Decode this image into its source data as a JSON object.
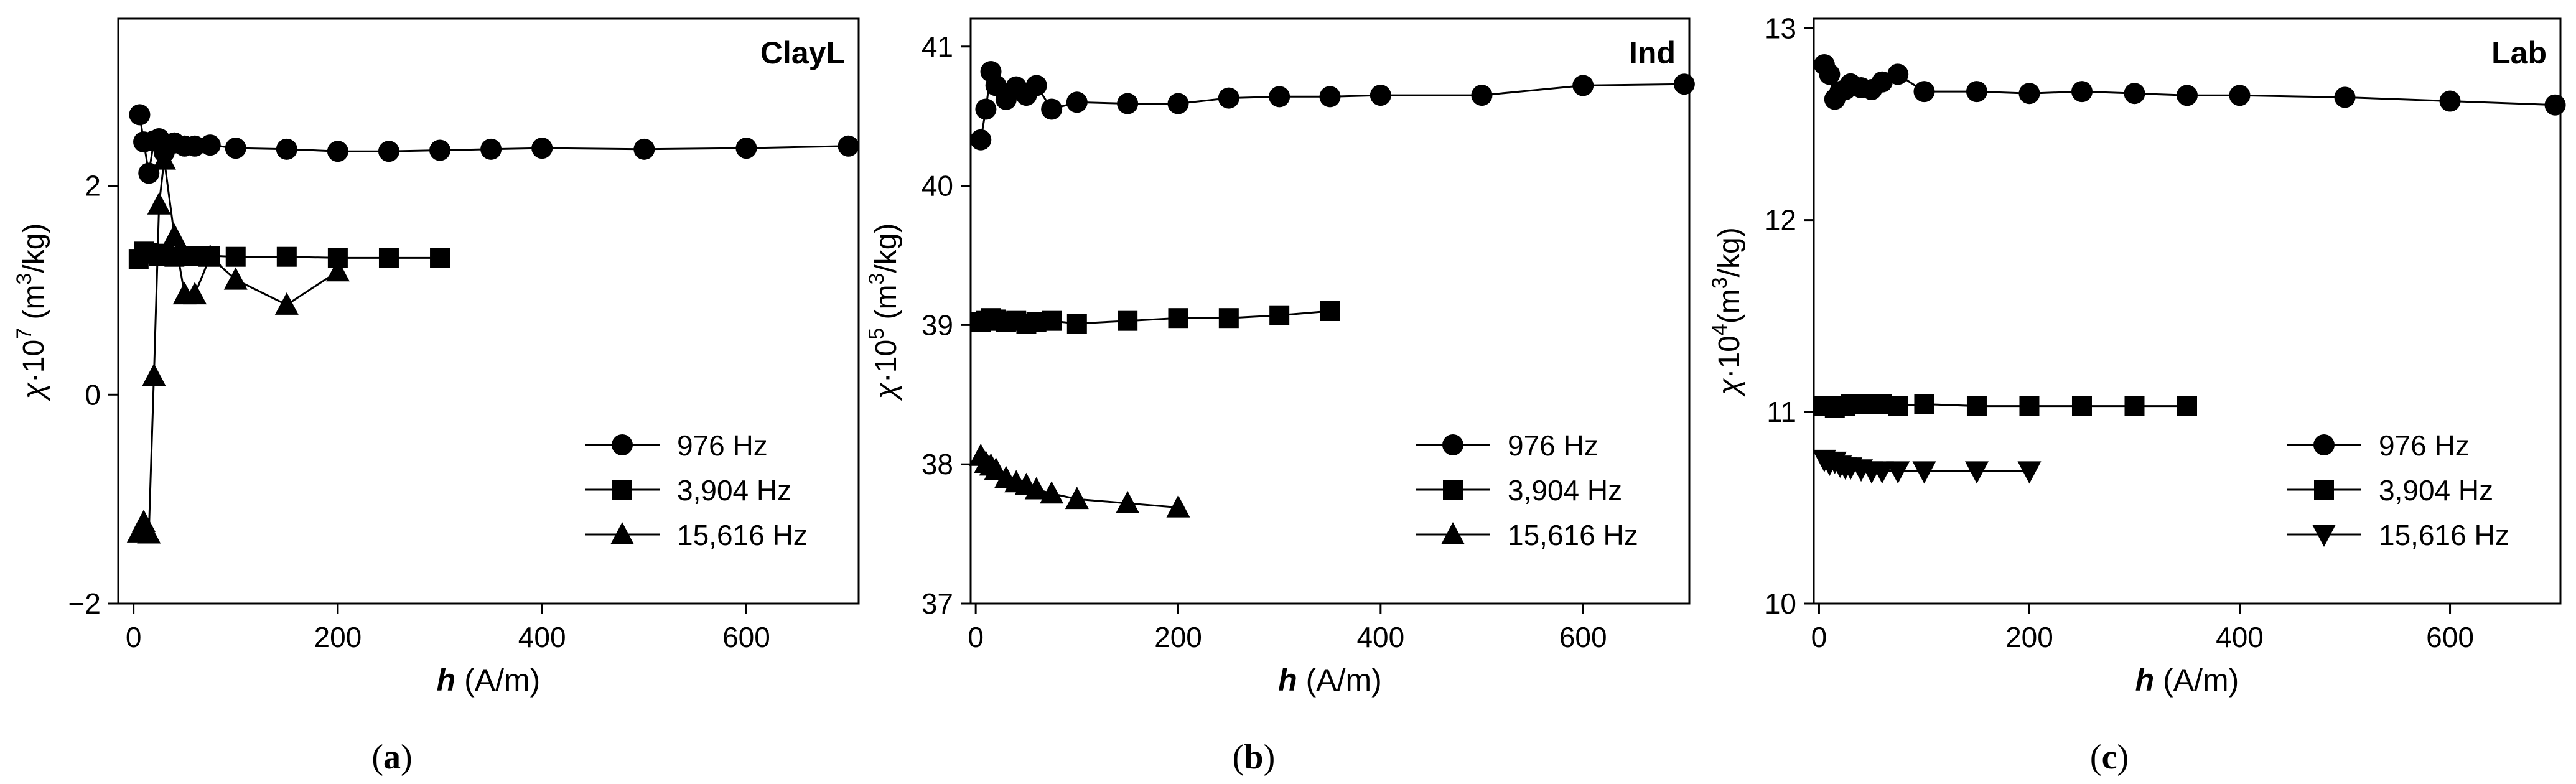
{
  "chart_data": [
    {
      "type": "line",
      "panel": "a",
      "caption_letter": "a",
      "title": "ClayL",
      "xlabel_var": "h",
      "xlabel_unit": "(A/m)",
      "ylabel_var": "χ",
      "ylabel_mult": "·10",
      "ylabel_exp": "7",
      "ylabel_unit_pre": " (m",
      "ylabel_unit_exp": "3",
      "ylabel_unit_post": "/kg)",
      "xlim": [
        -15,
        710
      ],
      "ylim": [
        -2,
        3.6
      ],
      "xticks": [
        0,
        200,
        400,
        600
      ],
      "xtick_labels": [
        "0",
        "200",
        "400",
        "600"
      ],
      "yticks": [
        -2,
        0,
        2
      ],
      "ytick_labels": [
        "−2",
        "0",
        "2"
      ],
      "legend": "bottom-right",
      "series": [
        {
          "name": "976 Hz",
          "marker": "circle",
          "x": [
            6,
            10,
            15,
            20,
            25,
            30,
            40,
            50,
            60,
            75,
            100,
            150,
            200,
            250,
            300,
            350,
            400,
            500,
            600,
            700
          ],
          "y": [
            2.68,
            2.42,
            2.12,
            2.43,
            2.45,
            2.32,
            2.41,
            2.38,
            2.38,
            2.39,
            2.36,
            2.35,
            2.33,
            2.33,
            2.34,
            2.35,
            2.36,
            2.35,
            2.36,
            2.38
          ]
        },
        {
          "name": "3,904 Hz",
          "marker": "square",
          "x": [
            5,
            10,
            15,
            20,
            25,
            30,
            40,
            50,
            60,
            75,
            100,
            150,
            200,
            250,
            300
          ],
          "y": [
            1.3,
            1.37,
            1.36,
            1.35,
            1.33,
            1.33,
            1.32,
            1.33,
            1.33,
            1.33,
            1.32,
            1.32,
            1.31,
            1.31,
            1.31
          ]
        },
        {
          "name": "15,616 Hz",
          "marker": "triangle-up",
          "x": [
            5,
            10,
            15,
            20,
            25,
            30,
            40,
            50,
            60,
            75,
            100,
            150,
            200
          ],
          "y": [
            -1.32,
            -1.22,
            -1.33,
            0.18,
            1.82,
            2.25,
            1.52,
            0.96,
            0.96,
            1.32,
            1.1,
            0.86,
            1.18
          ]
        }
      ]
    },
    {
      "type": "line",
      "panel": "b",
      "caption_letter": "b",
      "title": "Ind",
      "xlabel_var": "h",
      "xlabel_unit": "(A/m)",
      "ylabel_var": "χ",
      "ylabel_mult": "·10",
      "ylabel_exp": "5",
      "ylabel_unit_pre": " (m",
      "ylabel_unit_exp": "3",
      "ylabel_unit_post": "/kg)",
      "xlim": [
        -5,
        705
      ],
      "ylim": [
        37,
        41.2
      ],
      "xticks": [
        0,
        200,
        400,
        600
      ],
      "xtick_labels": [
        "0",
        "200",
        "400",
        "600"
      ],
      "yticks": [
        37,
        38,
        39,
        40,
        41
      ],
      "ytick_labels": [
        "37",
        "38",
        "39",
        "40",
        "41"
      ],
      "legend": "bottom-right",
      "series": [
        {
          "name": "976 Hz",
          "marker": "circle",
          "x": [
            5,
            10,
            15,
            20,
            30,
            40,
            50,
            60,
            75,
            100,
            150,
            200,
            250,
            300,
            350,
            400,
            500,
            600,
            700
          ],
          "y": [
            40.33,
            40.55,
            40.82,
            40.72,
            40.62,
            40.71,
            40.65,
            40.72,
            40.55,
            40.6,
            40.59,
            40.59,
            40.63,
            40.64,
            40.64,
            40.65,
            40.65,
            40.72,
            40.73
          ]
        },
        {
          "name": "3,904 Hz",
          "marker": "square",
          "x": [
            5,
            10,
            15,
            20,
            30,
            40,
            50,
            60,
            75,
            100,
            150,
            200,
            250,
            300,
            350
          ],
          "y": [
            39.02,
            39.03,
            39.05,
            39.04,
            39.02,
            39.03,
            39.01,
            39.02,
            39.03,
            39.01,
            39.03,
            39.05,
            39.05,
            39.07,
            39.1
          ]
        },
        {
          "name": "15,616 Hz",
          "marker": "triangle-up",
          "x": [
            5,
            10,
            15,
            20,
            30,
            40,
            50,
            60,
            75,
            100,
            150,
            200
          ],
          "y": [
            38.06,
            38.01,
            37.99,
            37.96,
            37.9,
            37.87,
            37.85,
            37.82,
            37.79,
            37.75,
            37.72,
            37.69
          ]
        }
      ]
    },
    {
      "type": "line",
      "panel": "c",
      "caption_letter": "c",
      "title": "Lab",
      "xlabel_var": "h",
      "xlabel_unit": "(A/m)",
      "ylabel_var": "χ",
      "ylabel_mult": "·10",
      "ylabel_exp": "4",
      "ylabel_unit_pre": "(m",
      "ylabel_unit_exp": "3",
      "ylabel_unit_post": "/kg)",
      "xlim": [
        -5,
        705
      ],
      "ylim": [
        10,
        13.05
      ],
      "xticks": [
        0,
        200,
        400,
        600
      ],
      "xtick_labels": [
        "0",
        "200",
        "400",
        "600"
      ],
      "yticks": [
        10,
        11,
        12,
        13
      ],
      "ytick_labels": [
        "10",
        "11",
        "12",
        "13"
      ],
      "legend": "bottom-right",
      "series": [
        {
          "name": "976 Hz",
          "marker": "circle",
          "x": [
            5,
            10,
            15,
            20,
            25,
            30,
            40,
            50,
            60,
            75,
            100,
            150,
            200,
            250,
            300,
            350,
            400,
            500,
            600,
            700
          ],
          "y": [
            12.81,
            12.76,
            12.63,
            12.67,
            12.68,
            12.71,
            12.69,
            12.68,
            12.72,
            12.76,
            12.67,
            12.67,
            12.66,
            12.67,
            12.66,
            12.65,
            12.65,
            12.64,
            12.62,
            12.6
          ]
        },
        {
          "name": "3,904 Hz",
          "marker": "square",
          "x": [
            5,
            10,
            15,
            20,
            25,
            30,
            40,
            50,
            60,
            75,
            100,
            150,
            200,
            250,
            300,
            350
          ],
          "y": [
            11.03,
            11.03,
            11.02,
            11.03,
            11.03,
            11.04,
            11.04,
            11.04,
            11.04,
            11.03,
            11.04,
            11.03,
            11.03,
            11.03,
            11.03,
            11.03
          ]
        },
        {
          "name": "15,616 Hz",
          "marker": "triangle-down",
          "x": [
            5,
            10,
            15,
            20,
            25,
            30,
            40,
            50,
            60,
            75,
            100,
            150,
            200
          ],
          "y": [
            10.75,
            10.73,
            10.74,
            10.72,
            10.71,
            10.71,
            10.7,
            10.69,
            10.69,
            10.69,
            10.69,
            10.69,
            10.69
          ]
        }
      ]
    }
  ]
}
